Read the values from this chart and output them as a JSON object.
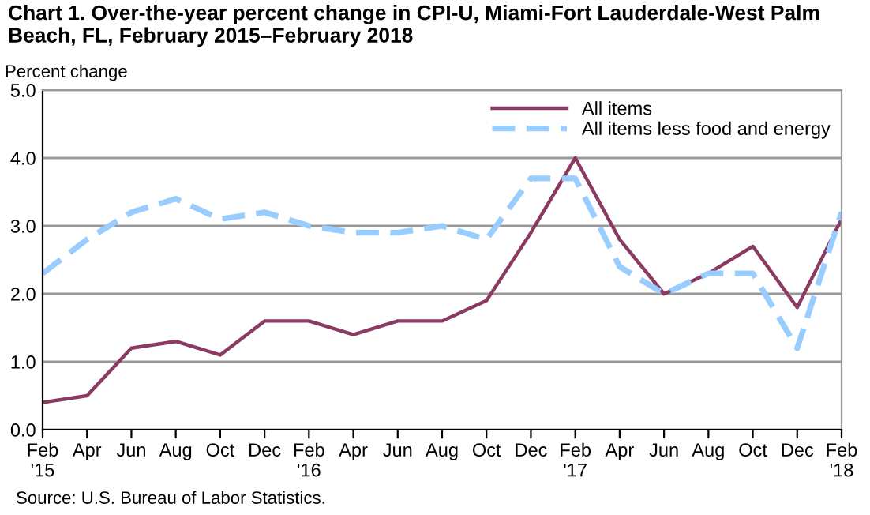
{
  "chart_data": {
    "type": "line",
    "title": "Chart 1. Over-the-year percent change in CPI-U, Miami-Fort Lauderdale-West Palm Beach, FL, February 2015–February 2018",
    "ylabel": "Percent change",
    "categories": [
      "Feb\n'15",
      "Apr",
      "Jun",
      "Aug",
      "Oct",
      "Dec",
      "Feb\n'16",
      "Apr",
      "Jun",
      "Aug",
      "Oct",
      "Dec",
      "Feb\n'17",
      "Apr",
      "Jun",
      "Aug",
      "Oct",
      "Dec",
      "Feb\n'18"
    ],
    "series": [
      {
        "name": "All items",
        "color": "#8b3a62",
        "line_style": "solid",
        "values": [
          0.4,
          0.5,
          1.2,
          1.3,
          1.1,
          1.6,
          1.6,
          1.4,
          1.6,
          1.6,
          1.9,
          2.9,
          4.0,
          2.8,
          2.0,
          2.3,
          2.7,
          1.8,
          3.1
        ]
      },
      {
        "name": "All items less food and energy",
        "color": "#99ccff",
        "line_style": "dashed",
        "values": [
          2.3,
          2.8,
          3.2,
          3.4,
          3.1,
          3.2,
          3.0,
          2.9,
          2.9,
          3.0,
          2.8,
          3.7,
          3.7,
          2.4,
          2.0,
          2.3,
          2.3,
          1.2,
          3.2
        ]
      }
    ],
    "ylim": [
      0,
      5
    ],
    "yticks": [
      {
        "value": 0,
        "label": "0.0"
      },
      {
        "value": 1,
        "label": "1.0"
      },
      {
        "value": 2,
        "label": "2.0"
      },
      {
        "value": 3,
        "label": "3.0"
      },
      {
        "value": 4,
        "label": "4.0"
      },
      {
        "value": 5,
        "label": "5.0"
      }
    ],
    "grid": "y",
    "legend": "top right",
    "annotations": [
      "Source: U.S. Bureau of Labor Statistics."
    ]
  }
}
